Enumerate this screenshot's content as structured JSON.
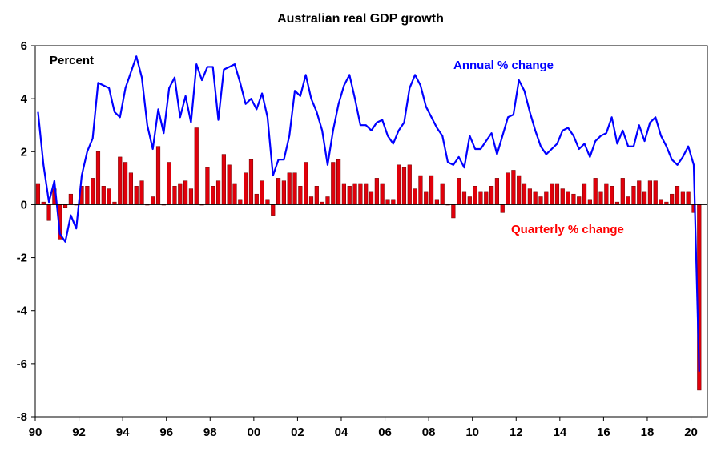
{
  "chart_data": {
    "type": "bar",
    "title": "Australian real GDP growth",
    "ylabel": "Percent",
    "xlim": [
      1990,
      2020.75
    ],
    "ylim": [
      -8,
      6
    ],
    "y_ticks": [
      -8,
      -6,
      -4,
      -2,
      0,
      2,
      4,
      6
    ],
    "x_ticks": [
      {
        "value": 1990,
        "label": "90"
      },
      {
        "value": 1992,
        "label": "92"
      },
      {
        "value": 1994,
        "label": "94"
      },
      {
        "value": 1996,
        "label": "96"
      },
      {
        "value": 1998,
        "label": "98"
      },
      {
        "value": 2000,
        "label": "00"
      },
      {
        "value": 2002,
        "label": "02"
      },
      {
        "value": 2004,
        "label": "04"
      },
      {
        "value": 2006,
        "label": "06"
      },
      {
        "value": 2008,
        "label": "08"
      },
      {
        "value": 2010,
        "label": "10"
      },
      {
        "value": 2012,
        "label": "12"
      },
      {
        "value": 2014,
        "label": "14"
      },
      {
        "value": 2016,
        "label": "16"
      },
      {
        "value": 2018,
        "label": "18"
      },
      {
        "value": 2020,
        "label": "20"
      }
    ],
    "grid": false,
    "legend": "annotations",
    "x_start": 1990,
    "x_step": 0.25,
    "series": [
      {
        "name": "Quarterly % change",
        "type": "bar",
        "color": "#e0000b",
        "label_color": "#ff0000",
        "values": [
          0.8,
          0.1,
          -0.6,
          0.6,
          -1.3,
          -0.1,
          0.4,
          0.0,
          0.7,
          0.7,
          1.0,
          2.0,
          0.7,
          0.6,
          0.1,
          1.8,
          1.6,
          1.2,
          0.7,
          0.9,
          0.0,
          0.3,
          2.2,
          0.0,
          1.6,
          0.7,
          0.8,
          0.9,
          0.6,
          2.9,
          0.0,
          1.4,
          0.7,
          0.9,
          1.9,
          1.5,
          0.8,
          0.2,
          1.2,
          1.7,
          0.4,
          0.9,
          0.2,
          -0.4,
          1.0,
          0.9,
          1.2,
          1.2,
          0.7,
          1.6,
          0.3,
          0.7,
          0.1,
          0.3,
          1.6,
          1.7,
          0.8,
          0.7,
          0.8,
          0.8,
          0.8,
          0.5,
          1.0,
          0.8,
          0.2,
          0.2,
          1.5,
          1.4,
          1.5,
          0.6,
          1.1,
          0.5,
          1.1,
          0.2,
          0.8,
          0.0,
          -0.5,
          1.0,
          0.5,
          0.3,
          0.7,
          0.5,
          0.5,
          0.7,
          1.0,
          -0.3,
          1.2,
          1.3,
          1.1,
          0.8,
          0.6,
          0.5,
          0.3,
          0.5,
          0.8,
          0.8,
          0.6,
          0.5,
          0.4,
          0.3,
          0.8,
          0.2,
          1.0,
          0.5,
          0.8,
          0.7,
          0.1,
          1.0,
          0.3,
          0.7,
          0.9,
          0.5,
          0.9,
          0.9,
          0.2,
          0.1,
          0.4,
          0.7,
          0.5,
          0.5,
          -0.3,
          -7.0
        ]
      },
      {
        "name": "Annual % change",
        "type": "line",
        "color": "#0000ff",
        "label_color": "#0000ff",
        "values": [
          3.5,
          1.5,
          0.1,
          0.9,
          -1.1,
          -1.4,
          -0.4,
          -0.9,
          1.1,
          2.0,
          2.5,
          4.6,
          4.5,
          4.4,
          3.5,
          3.3,
          4.4,
          5.0,
          5.6,
          4.8,
          3.0,
          2.1,
          3.6,
          2.7,
          4.4,
          4.8,
          3.3,
          4.1,
          3.1,
          5.3,
          4.7,
          5.2,
          5.2,
          3.2,
          5.1,
          5.2,
          5.3,
          4.6,
          3.8,
          4.0,
          3.6,
          4.2,
          3.3,
          1.1,
          1.7,
          1.7,
          2.6,
          4.3,
          4.1,
          4.9,
          4.0,
          3.5,
          2.8,
          1.5,
          2.8,
          3.8,
          4.5,
          4.9,
          4.0,
          3.0,
          3.0,
          2.8,
          3.1,
          3.2,
          2.6,
          2.3,
          2.8,
          3.1,
          4.4,
          4.9,
          4.5,
          3.7,
          3.3,
          2.9,
          2.6,
          1.6,
          1.5,
          1.8,
          1.4,
          2.6,
          2.1,
          2.1,
          2.4,
          2.7,
          1.9,
          2.6,
          3.3,
          3.4,
          4.7,
          4.3,
          3.5,
          2.8,
          2.2,
          1.9,
          2.1,
          2.3,
          2.8,
          2.9,
          2.6,
          2.1,
          2.3,
          1.8,
          2.4,
          2.6,
          2.7,
          3.3,
          2.3,
          2.8,
          2.2,
          2.2,
          3.0,
          2.4,
          3.1,
          3.3,
          2.6,
          2.2,
          1.7,
          1.5,
          1.8,
          2.2,
          1.5,
          -6.3
        ]
      }
    ],
    "annotations": [
      {
        "text": "Percent",
        "color": "#000000"
      },
      {
        "text": "Annual % change",
        "color": "#0000ff"
      },
      {
        "text": "Quarterly % change",
        "color": "#ff0000"
      }
    ]
  }
}
